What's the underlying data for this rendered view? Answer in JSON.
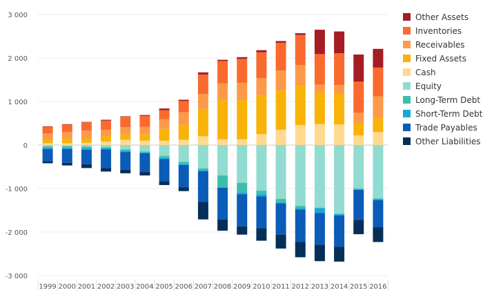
{
  "chart_data": {
    "type": "bar",
    "stacked": true,
    "categories": [
      "1999",
      "2000",
      "2001",
      "2002",
      "2003",
      "2004",
      "2005",
      "2006",
      "2007",
      "2008",
      "2009",
      "2010",
      "2011",
      "2012",
      "2013",
      "2014",
      "2015",
      "2016"
    ],
    "ylim": [
      -3000,
      3000
    ],
    "yticks": [
      -3000,
      -2000,
      -1000,
      0,
      1000,
      2000,
      3000
    ],
    "ytick_labels": [
      "-3 000",
      "-2 000",
      "-1 000",
      "0",
      "1 000",
      "2 000",
      "3 000"
    ],
    "grid": true,
    "legend_position": "right",
    "title": "",
    "xlabel": "",
    "ylabel": "",
    "series": [
      {
        "name": "Other Assets",
        "color": "#a51c24",
        "values": [
          10,
          10,
          10,
          20,
          10,
          20,
          40,
          30,
          50,
          30,
          40,
          50,
          40,
          40,
          560,
          500,
          620,
          430
        ]
      },
      {
        "name": "Inventories",
        "color": "#fa6a2e",
        "values": [
          150,
          170,
          190,
          210,
          240,
          250,
          210,
          260,
          450,
          510,
          550,
          590,
          640,
          690,
          700,
          730,
          720,
          660
        ]
      },
      {
        "name": "Receivables",
        "color": "#fd9a4a",
        "values": [
          150,
          160,
          180,
          150,
          170,
          170,
          220,
          280,
          340,
          390,
          400,
          390,
          460,
          480,
          180,
          190,
          240,
          500
        ]
      },
      {
        "name": "Fixed Assets",
        "color": "#f9b208",
        "values": [
          80,
          100,
          100,
          120,
          120,
          150,
          270,
          350,
          630,
          900,
          900,
          900,
          900,
          900,
          730,
          720,
          280,
          320
        ]
      },
      {
        "name": "Cash",
        "color": "#fed98e",
        "values": [
          40,
          40,
          50,
          80,
          120,
          100,
          100,
          120,
          200,
          130,
          130,
          250,
          350,
          460,
          480,
          470,
          220,
          300
        ]
      },
      {
        "name": "Equity",
        "color": "#91dbd1",
        "values": [
          -30,
          -30,
          -40,
          -50,
          -100,
          -150,
          -250,
          -390,
          -540,
          -700,
          -870,
          -1050,
          -1240,
          -1400,
          -1440,
          -1580,
          -1000,
          -1230
        ]
      },
      {
        "name": "Long-Term Debt",
        "color": "#3bbfad",
        "values": [
          -40,
          -40,
          -40,
          -30,
          -30,
          -20,
          -50,
          -50,
          -40,
          -270,
          -220,
          -80,
          -80,
          -60,
          -10,
          -10,
          -20,
          -10
        ]
      },
      {
        "name": "Short-Term Debt",
        "color": "#1aa6d6",
        "values": [
          -20,
          -20,
          -30,
          -20,
          -30,
          -20,
          -20,
          -20,
          -20,
          -10,
          -40,
          -50,
          -20,
          -20,
          -110,
          -30,
          -10,
          -30
        ]
      },
      {
        "name": "Trade Payables",
        "color": "#0a5cb8",
        "values": [
          -280,
          -320,
          -330,
          -430,
          -410,
          -430,
          -510,
          -510,
          -710,
          -730,
          -740,
          -730,
          -720,
          -750,
          -730,
          -720,
          -690,
          -620
        ]
      },
      {
        "name": "Other Liabilities",
        "color": "#062f58",
        "values": [
          -50,
          -60,
          -90,
          -80,
          -80,
          -80,
          -90,
          -90,
          -400,
          -260,
          -190,
          -290,
          -320,
          -350,
          -380,
          -340,
          -330,
          -340
        ]
      }
    ]
  }
}
